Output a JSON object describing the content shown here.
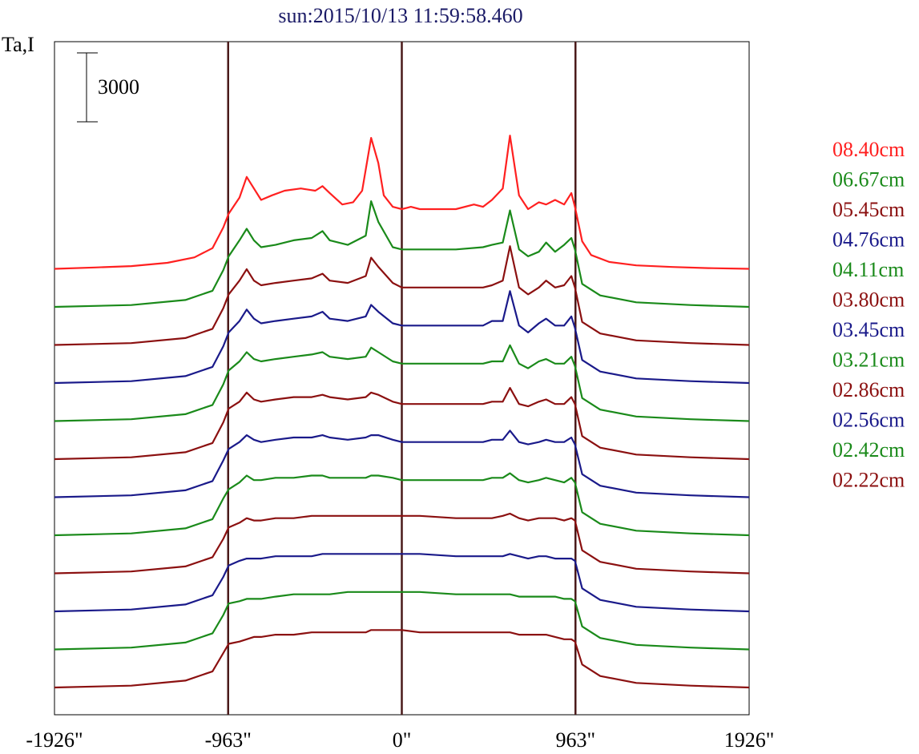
{
  "chart_data": {
    "type": "line",
    "title": "sun:2015/10/13 11:59:58.460",
    "ylabel": "Ta,I",
    "scale_bar_label": "3000",
    "scale_bar_value": 3000,
    "xlim": [
      -1926,
      1926
    ],
    "x_ticks": [
      {
        "value": -1926,
        "label": "-1926\""
      },
      {
        "value": -963,
        "label": "-963\""
      },
      {
        "value": 0,
        "label": "0\""
      },
      {
        "value": 963,
        "label": "963\""
      },
      {
        "value": 1926,
        "label": "1926\""
      }
    ],
    "vertical_markers": [
      -963,
      0,
      963
    ],
    "grid": false,
    "legend_position": "right",
    "layout_note_offsets": "each series is vertically offset; bottom trace lowest",
    "series": [
      {
        "name": "08.40cm",
        "color": "#ff2020",
        "x": [
          -1926,
          -1700,
          -1500,
          -1300,
          -1150,
          -1050,
          -990,
          -960,
          -900,
          -860,
          -820,
          -780,
          -720,
          -650,
          -560,
          -480,
          -440,
          -400,
          -330,
          -270,
          -220,
          -170,
          -130,
          -100,
          -50,
          0,
          50,
          100,
          200,
          300,
          400,
          450,
          500,
          560,
          600,
          650,
          700,
          760,
          800,
          850,
          900,
          940,
          960,
          1000,
          1050,
          1150,
          1300,
          1500,
          1700,
          1926
        ],
        "y": [
          0,
          60,
          120,
          260,
          500,
          900,
          1800,
          2400,
          3100,
          4000,
          3500,
          3000,
          3200,
          3400,
          3500,
          3400,
          3600,
          3300,
          2800,
          2900,
          3400,
          5700,
          4600,
          3200,
          2700,
          2600,
          2700,
          2600,
          2600,
          2600,
          2800,
          2700,
          3000,
          3500,
          5800,
          3200,
          2600,
          2900,
          2800,
          3000,
          2800,
          3300,
          2700,
          1200,
          600,
          300,
          150,
          80,
          30,
          0
        ]
      },
      {
        "name": "06.67cm",
        "color": "#1a8a1a",
        "x": [
          -1926,
          -1500,
          -1200,
          -1050,
          -990,
          -960,
          -900,
          -860,
          -820,
          -780,
          -700,
          -600,
          -500,
          -440,
          -400,
          -300,
          -200,
          -170,
          -130,
          -50,
          0,
          100,
          300,
          450,
          500,
          560,
          600,
          650,
          700,
          760,
          800,
          850,
          900,
          940,
          960,
          1000,
          1100,
          1300,
          1600,
          1926
        ],
        "y": [
          0,
          80,
          300,
          700,
          1600,
          2200,
          2900,
          3400,
          2900,
          2600,
          2700,
          2900,
          3000,
          3300,
          2900,
          2700,
          3100,
          4600,
          3700,
          2600,
          2500,
          2500,
          2500,
          2600,
          2700,
          2800,
          4200,
          2500,
          2200,
          2400,
          2800,
          2400,
          2700,
          3000,
          2500,
          1000,
          500,
          200,
          80,
          0
        ]
      },
      {
        "name": "05.45cm",
        "color": "#8b1010",
        "x": [
          -1926,
          -1500,
          -1200,
          -1050,
          -990,
          -960,
          -900,
          -860,
          -820,
          -780,
          -700,
          -600,
          -500,
          -440,
          -400,
          -300,
          -200,
          -170,
          -130,
          -50,
          0,
          100,
          300,
          450,
          500,
          560,
          600,
          650,
          700,
          760,
          800,
          850,
          900,
          940,
          960,
          1000,
          1100,
          1300,
          1600,
          1926
        ],
        "y": [
          0,
          80,
          300,
          700,
          1600,
          2200,
          2800,
          3300,
          2800,
          2600,
          2700,
          2800,
          2900,
          3100,
          2800,
          2700,
          3000,
          3800,
          3400,
          2700,
          2500,
          2500,
          2500,
          2500,
          2600,
          2800,
          4300,
          2500,
          2200,
          2500,
          2800,
          2500,
          2600,
          3000,
          2500,
          1000,
          500,
          200,
          80,
          0
        ]
      },
      {
        "name": "04.76cm",
        "color": "#1a1a8a",
        "x": [
          -1926,
          -1500,
          -1200,
          -1050,
          -990,
          -960,
          -900,
          -860,
          -820,
          -780,
          -700,
          -600,
          -500,
          -440,
          -400,
          -300,
          -200,
          -170,
          -130,
          -50,
          0,
          100,
          300,
          450,
          500,
          560,
          600,
          650,
          700,
          760,
          800,
          850,
          900,
          940,
          960,
          1000,
          1100,
          1300,
          1600,
          1926
        ],
        "y": [
          0,
          80,
          300,
          700,
          1600,
          2200,
          2700,
          3200,
          2800,
          2600,
          2700,
          2800,
          2900,
          3100,
          2800,
          2700,
          2900,
          3400,
          3100,
          2600,
          2500,
          2500,
          2500,
          2500,
          2700,
          2700,
          4000,
          2500,
          2200,
          2600,
          2800,
          2500,
          2500,
          2900,
          2400,
          1000,
          500,
          200,
          80,
          0
        ]
      },
      {
        "name": "04.11cm",
        "color": "#1a8a1a",
        "x": [
          -1926,
          -1500,
          -1200,
          -1050,
          -990,
          -960,
          -900,
          -860,
          -820,
          -780,
          -700,
          -600,
          -500,
          -440,
          -400,
          -300,
          -200,
          -170,
          -130,
          -50,
          0,
          100,
          300,
          450,
          500,
          560,
          600,
          650,
          700,
          760,
          800,
          850,
          900,
          940,
          960,
          1000,
          1100,
          1300,
          1600,
          1926
        ],
        "y": [
          0,
          80,
          300,
          700,
          1600,
          2200,
          2600,
          3000,
          2700,
          2600,
          2700,
          2800,
          2900,
          3000,
          2800,
          2700,
          2800,
          3200,
          3000,
          2600,
          2500,
          2500,
          2500,
          2500,
          2600,
          2600,
          3300,
          2500,
          2300,
          2600,
          2700,
          2500,
          2500,
          2800,
          2400,
          1000,
          500,
          200,
          80,
          0
        ]
      },
      {
        "name": "03.80cm",
        "color": "#8b1010",
        "x": [
          -1926,
          -1500,
          -1200,
          -1050,
          -990,
          -960,
          -900,
          -860,
          -820,
          -780,
          -700,
          -600,
          -500,
          -440,
          -400,
          -300,
          -200,
          -170,
          -130,
          -50,
          0,
          100,
          300,
          450,
          500,
          560,
          600,
          650,
          700,
          760,
          800,
          850,
          900,
          940,
          960,
          1000,
          1100,
          1300,
          1600,
          1926
        ],
        "y": [
          0,
          80,
          300,
          700,
          1600,
          2200,
          2500,
          2900,
          2600,
          2500,
          2600,
          2700,
          2700,
          2800,
          2700,
          2600,
          2700,
          2900,
          2800,
          2500,
          2400,
          2400,
          2400,
          2400,
          2500,
          2500,
          3100,
          2400,
          2300,
          2500,
          2600,
          2400,
          2400,
          2700,
          2400,
          1000,
          500,
          200,
          80,
          0
        ]
      },
      {
        "name": "03.45cm",
        "color": "#1a1a8a",
        "x": [
          -1926,
          -1500,
          -1200,
          -1050,
          -990,
          -960,
          -900,
          -860,
          -820,
          -780,
          -700,
          -600,
          -500,
          -440,
          -400,
          -300,
          -200,
          -170,
          -130,
          -50,
          0,
          100,
          300,
          450,
          500,
          560,
          600,
          650,
          700,
          760,
          800,
          850,
          900,
          940,
          960,
          1000,
          1100,
          1300,
          1600,
          1926
        ],
        "y": [
          0,
          80,
          300,
          700,
          1600,
          2100,
          2400,
          2700,
          2500,
          2400,
          2500,
          2600,
          2600,
          2700,
          2600,
          2500,
          2600,
          2700,
          2700,
          2500,
          2400,
          2400,
          2400,
          2400,
          2500,
          2500,
          2900,
          2400,
          2300,
          2400,
          2500,
          2400,
          2400,
          2600,
          2300,
          1000,
          500,
          200,
          80,
          0
        ]
      },
      {
        "name": "03.21cm",
        "color": "#1a8a1a",
        "x": [
          -1926,
          -1500,
          -1200,
          -1050,
          -990,
          -960,
          -900,
          -860,
          -820,
          -780,
          -700,
          -600,
          -500,
          -440,
          -400,
          -300,
          -200,
          -170,
          -130,
          -50,
          0,
          100,
          300,
          450,
          500,
          560,
          600,
          650,
          700,
          760,
          800,
          850,
          900,
          940,
          960,
          1000,
          1100,
          1300,
          1600,
          1926
        ],
        "y": [
          0,
          80,
          300,
          700,
          1600,
          2000,
          2300,
          2600,
          2400,
          2400,
          2500,
          2500,
          2600,
          2600,
          2500,
          2500,
          2500,
          2600,
          2600,
          2500,
          2400,
          2400,
          2400,
          2400,
          2500,
          2500,
          2700,
          2400,
          2300,
          2400,
          2500,
          2400,
          2300,
          2500,
          2300,
          1000,
          500,
          200,
          80,
          0
        ]
      },
      {
        "name": "02.86cm",
        "color": "#8b1010",
        "x": [
          -1926,
          -1500,
          -1200,
          -1050,
          -990,
          -960,
          -900,
          -860,
          -820,
          -780,
          -700,
          -600,
          -500,
          -440,
          -400,
          -300,
          -200,
          -170,
          -130,
          -50,
          0,
          100,
          300,
          450,
          500,
          560,
          600,
          650,
          700,
          760,
          800,
          850,
          900,
          940,
          960,
          1000,
          1100,
          1300,
          1600,
          1926
        ],
        "y": [
          0,
          80,
          300,
          700,
          1500,
          2000,
          2200,
          2400,
          2300,
          2300,
          2400,
          2400,
          2500,
          2500,
          2500,
          2500,
          2500,
          2500,
          2500,
          2500,
          2500,
          2500,
          2400,
          2400,
          2400,
          2500,
          2600,
          2400,
          2300,
          2400,
          2400,
          2400,
          2300,
          2400,
          2300,
          1000,
          500,
          200,
          80,
          0
        ]
      },
      {
        "name": "02.56cm",
        "color": "#1a1a8a",
        "x": [
          -1926,
          -1500,
          -1200,
          -1050,
          -990,
          -960,
          -900,
          -860,
          -820,
          -780,
          -700,
          -600,
          -500,
          -440,
          -400,
          -300,
          -200,
          -170,
          -130,
          -50,
          0,
          100,
          300,
          450,
          500,
          560,
          600,
          650,
          700,
          760,
          800,
          850,
          900,
          940,
          960,
          1000,
          1100,
          1300,
          1600,
          1926
        ],
        "y": [
          0,
          80,
          300,
          700,
          1500,
          2000,
          2200,
          2300,
          2300,
          2300,
          2400,
          2400,
          2400,
          2500,
          2500,
          2500,
          2500,
          2500,
          2500,
          2500,
          2500,
          2500,
          2400,
          2400,
          2400,
          2400,
          2500,
          2400,
          2300,
          2400,
          2400,
          2300,
          2300,
          2300,
          2200,
          1000,
          500,
          200,
          80,
          0
        ]
      },
      {
        "name": "02.42cm",
        "color": "#1a8a1a",
        "x": [
          -1926,
          -1500,
          -1200,
          -1050,
          -990,
          -960,
          -900,
          -860,
          -820,
          -780,
          -700,
          -600,
          -500,
          -440,
          -400,
          -300,
          -200,
          -170,
          -130,
          -50,
          0,
          100,
          300,
          450,
          500,
          560,
          600,
          650,
          700,
          760,
          800,
          850,
          900,
          940,
          960,
          1000,
          1100,
          1300,
          1600,
          1926
        ],
        "y": [
          0,
          80,
          300,
          700,
          1500,
          2000,
          2100,
          2200,
          2200,
          2200,
          2300,
          2400,
          2400,
          2400,
          2400,
          2500,
          2500,
          2500,
          2500,
          2500,
          2500,
          2500,
          2400,
          2400,
          2400,
          2400,
          2400,
          2300,
          2300,
          2300,
          2300,
          2300,
          2200,
          2200,
          2100,
          1000,
          500,
          200,
          80,
          0
        ]
      },
      {
        "name": "02.22cm",
        "color": "#8b1010",
        "x": [
          -1926,
          -1500,
          -1200,
          -1050,
          -990,
          -960,
          -900,
          -860,
          -820,
          -780,
          -700,
          -600,
          -500,
          -440,
          -400,
          -300,
          -200,
          -170,
          -130,
          -50,
          0,
          100,
          300,
          450,
          500,
          560,
          600,
          650,
          700,
          760,
          800,
          850,
          900,
          940,
          960,
          1000,
          1100,
          1300,
          1600,
          1926
        ],
        "y": [
          0,
          80,
          300,
          700,
          1500,
          1900,
          2000,
          2100,
          2200,
          2200,
          2300,
          2300,
          2400,
          2400,
          2400,
          2400,
          2400,
          2500,
          2500,
          2500,
          2500,
          2400,
          2400,
          2400,
          2400,
          2400,
          2400,
          2300,
          2300,
          2300,
          2300,
          2200,
          2100,
          2100,
          2000,
          1000,
          500,
          200,
          80,
          0
        ]
      }
    ]
  }
}
